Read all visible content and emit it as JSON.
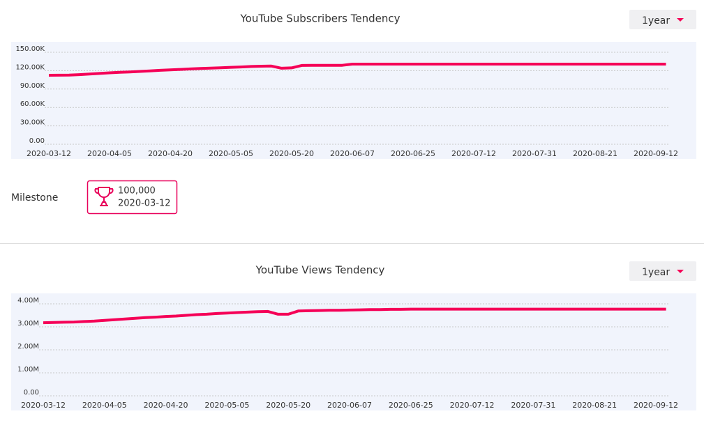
{
  "chart_data": [
    {
      "type": "line",
      "title": "YouTube Subscribers Tendency",
      "period": "1year",
      "color": "#f50057",
      "grid": true,
      "categories": [
        "2020-03-12",
        null,
        null,
        null,
        null,
        null,
        "2020-04-05",
        null,
        null,
        null,
        null,
        null,
        "2020-04-20",
        null,
        null,
        null,
        null,
        null,
        "2020-05-05",
        null,
        null,
        null,
        null,
        null,
        "2020-05-20",
        null,
        null,
        null,
        null,
        null,
        "2020-06-07",
        null,
        null,
        null,
        null,
        null,
        "2020-06-25",
        null,
        null,
        null,
        null,
        null,
        "2020-07-12",
        null,
        null,
        null,
        null,
        null,
        "2020-07-31",
        null,
        null,
        null,
        null,
        null,
        "2020-08-21",
        null,
        null,
        null,
        null,
        null,
        "2020-09-12",
        null
      ],
      "values": [
        112500,
        112600,
        112800,
        113500,
        114500,
        115500,
        116500,
        117300,
        118000,
        118800,
        119700,
        120600,
        121400,
        122000,
        122800,
        123500,
        124100,
        124800,
        125400,
        126000,
        126800,
        127300,
        127500,
        124000,
        124500,
        128500,
        128600,
        128600,
        128700,
        128800,
        130700,
        130700,
        130700,
        130700,
        130700,
        130700,
        130700,
        130700,
        130700,
        130700,
        130700,
        130700,
        130700,
        130700,
        130700,
        130700,
        130700,
        130700,
        130700,
        130700,
        130700,
        130700,
        130700,
        130700,
        130700,
        130700,
        130700,
        130700,
        130700,
        130700,
        130700,
        130700
      ],
      "ylim": [
        0,
        150000
      ],
      "yticks": [
        {
          "value": 0,
          "label": "0.00"
        },
        {
          "value": 30000,
          "label": "30.00K"
        },
        {
          "value": 60000,
          "label": "60.00K"
        },
        {
          "value": 90000,
          "label": "90.00K"
        },
        {
          "value": 120000,
          "label": "120.00K"
        },
        {
          "value": 150000,
          "label": "150.00K"
        }
      ]
    },
    {
      "type": "line",
      "title": "YouTube Views Tendency",
      "period": "1year",
      "color": "#f50057",
      "grid": true,
      "categories": [
        "2020-03-12",
        null,
        null,
        null,
        null,
        null,
        "2020-04-05",
        null,
        null,
        null,
        null,
        null,
        "2020-04-20",
        null,
        null,
        null,
        null,
        null,
        "2020-05-05",
        null,
        null,
        null,
        null,
        null,
        "2020-05-20",
        null,
        null,
        null,
        null,
        null,
        "2020-06-07",
        null,
        null,
        null,
        null,
        null,
        "2020-06-25",
        null,
        null,
        null,
        null,
        null,
        "2020-07-12",
        null,
        null,
        null,
        null,
        null,
        "2020-07-31",
        null,
        null,
        null,
        null,
        null,
        "2020-08-21",
        null,
        null,
        null,
        null,
        null,
        "2020-09-12",
        null
      ],
      "values": [
        3180000,
        3190000,
        3200000,
        3210000,
        3230000,
        3250000,
        3280000,
        3310000,
        3340000,
        3370000,
        3400000,
        3420000,
        3450000,
        3470000,
        3500000,
        3530000,
        3550000,
        3580000,
        3600000,
        3620000,
        3640000,
        3660000,
        3670000,
        3550000,
        3550000,
        3690000,
        3700000,
        3710000,
        3720000,
        3720000,
        3730000,
        3740000,
        3750000,
        3750000,
        3760000,
        3760000,
        3770000,
        3770000,
        3770000,
        3770000,
        3770000,
        3770000,
        3770000,
        3770000,
        3770000,
        3770000,
        3770000,
        3770000,
        3770000,
        3770000,
        3770000,
        3770000,
        3770000,
        3770000,
        3770000,
        3770000,
        3770000,
        3770000,
        3770000,
        3770000,
        3770000,
        3770000
      ],
      "ylim": [
        0,
        4000000
      ],
      "yticks": [
        {
          "value": 0,
          "label": "0.00"
        },
        {
          "value": 1000000,
          "label": "1.00M"
        },
        {
          "value": 2000000,
          "label": "2.00M"
        },
        {
          "value": 3000000,
          "label": "3.00M"
        },
        {
          "value": 4000000,
          "label": "4.00M"
        }
      ]
    }
  ],
  "milestone": {
    "label": "Milestone",
    "items": [
      {
        "value": "100,000",
        "date": "2020-03-12"
      }
    ]
  }
}
